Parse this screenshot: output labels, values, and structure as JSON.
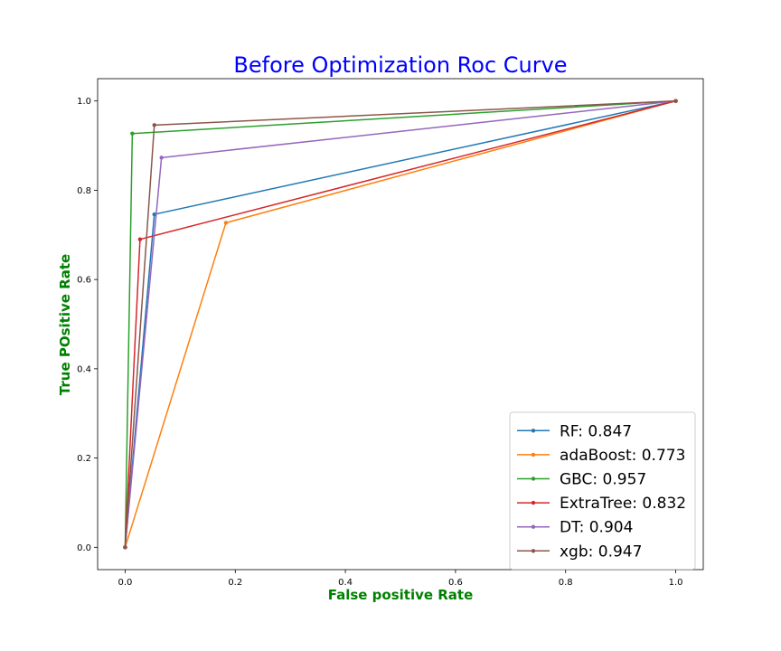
{
  "chart_data": {
    "type": "line",
    "title": "Before Optimization Roc Curve",
    "xlabel": "False positive Rate",
    "ylabel": "True POsitive Rate",
    "xlim": [
      -0.05,
      1.05
    ],
    "ylim": [
      -0.05,
      1.05
    ],
    "xticks": [
      "0.0",
      "0.2",
      "0.4",
      "0.6",
      "0.8",
      "1.0"
    ],
    "yticks": [
      "0.0",
      "0.2",
      "0.4",
      "0.6",
      "0.8",
      "1.0"
    ],
    "grid": false,
    "legend_position": "lower-right",
    "series": [
      {
        "name": "RF: 0.847",
        "color": "#1f77b4",
        "x": [
          0,
          0.053,
          1
        ],
        "y": [
          0,
          0.746,
          1
        ]
      },
      {
        "name": "adaBoost: 0.773",
        "color": "#ff7f0e",
        "x": [
          0,
          0.183,
          1
        ],
        "y": [
          0,
          0.727,
          1
        ]
      },
      {
        "name": "GBC: 0.957",
        "color": "#2ca02c",
        "x": [
          0,
          0.013,
          1
        ],
        "y": [
          0,
          0.927,
          1
        ]
      },
      {
        "name": "ExtraTree: 0.832",
        "color": "#d62728",
        "x": [
          0,
          0.027,
          1
        ],
        "y": [
          0,
          0.69,
          1
        ]
      },
      {
        "name": "DT: 0.904",
        "color": "#9467bd",
        "x": [
          0,
          0.066,
          1
        ],
        "y": [
          0,
          0.873,
          1
        ]
      },
      {
        "name": "xgb: 0.947",
        "color": "#8c564b",
        "x": [
          0,
          0.053,
          1
        ],
        "y": [
          0,
          0.946,
          1
        ]
      }
    ]
  }
}
